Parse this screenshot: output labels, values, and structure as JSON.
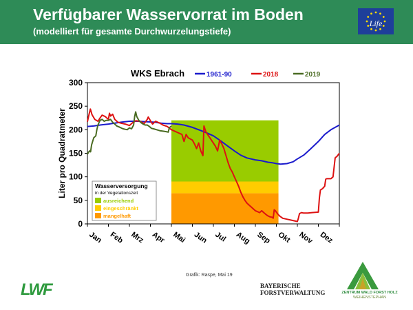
{
  "header": {
    "title": "Verfügbarer Wasservorrat im Boden",
    "subtitle": "(modelliert für gesamte Durchwurzelungstiefe)",
    "eu_logo_text": "Life"
  },
  "chart_data": {
    "type": "line",
    "title": "WKS Ebrach",
    "ylabel": "Liter pro Quadratmeter",
    "xlabel": "",
    "ylim": [
      0,
      300
    ],
    "yticks": [
      0,
      50,
      100,
      150,
      200,
      250,
      300
    ],
    "months": [
      "Jan",
      "Feb",
      "Mrz",
      "Apr",
      "Mai",
      "Jun",
      "Jul",
      "Aug",
      "Sep",
      "Okt",
      "Nov",
      "Dez"
    ],
    "grid": false,
    "legend": "top",
    "series": [
      {
        "name": "1961-90",
        "color": "#1a1acc",
        "points": [
          [
            0,
            207
          ],
          [
            0.3,
            208
          ],
          [
            0.6,
            210
          ],
          [
            1,
            212
          ],
          [
            1.3,
            214
          ],
          [
            1.6,
            216
          ],
          [
            2,
            218
          ],
          [
            2.4,
            218
          ],
          [
            2.8,
            217
          ],
          [
            3.2,
            216
          ],
          [
            3.5,
            214
          ],
          [
            3.8,
            213
          ],
          [
            4,
            213
          ],
          [
            4.3,
            212
          ],
          [
            4.6,
            210
          ],
          [
            5,
            205
          ],
          [
            5.3,
            200
          ],
          [
            5.6,
            195
          ],
          [
            6,
            187
          ],
          [
            6.3,
            178
          ],
          [
            6.6,
            168
          ],
          [
            7,
            155
          ],
          [
            7.3,
            146
          ],
          [
            7.6,
            140
          ],
          [
            8,
            136
          ],
          [
            8.3,
            134
          ],
          [
            8.6,
            131
          ],
          [
            8.8,
            130
          ],
          [
            9,
            128
          ],
          [
            9.2,
            127
          ],
          [
            9.5,
            128
          ],
          [
            9.8,
            132
          ],
          [
            10,
            138
          ],
          [
            10.3,
            146
          ],
          [
            10.6,
            158
          ],
          [
            11,
            175
          ],
          [
            11.3,
            190
          ],
          [
            11.6,
            200
          ],
          [
            12,
            210
          ]
        ],
        "type_hint": "climate mean"
      },
      {
        "name": "2018",
        "color": "#dd1111",
        "points": [
          [
            0,
            217
          ],
          [
            0.08,
            233
          ],
          [
            0.14,
            244
          ],
          [
            0.22,
            232
          ],
          [
            0.35,
            222
          ],
          [
            0.5,
            218
          ],
          [
            0.6,
            225
          ],
          [
            0.7,
            231
          ],
          [
            0.85,
            228
          ],
          [
            1,
            222
          ],
          [
            1.05,
            235
          ],
          [
            1.1,
            229
          ],
          [
            1.2,
            233
          ],
          [
            1.3,
            222
          ],
          [
            1.45,
            216
          ],
          [
            1.6,
            214
          ],
          [
            1.8,
            212
          ],
          [
            2,
            209
          ],
          [
            2.15,
            215
          ],
          [
            2.3,
            219
          ],
          [
            2.5,
            218
          ],
          [
            2.7,
            213
          ],
          [
            2.85,
            222
          ],
          [
            2.9,
            227
          ],
          [
            3.0,
            219
          ],
          [
            3.1,
            212
          ],
          [
            3.25,
            218
          ],
          [
            3.45,
            214
          ],
          [
            3.6,
            210
          ],
          [
            3.8,
            207
          ],
          [
            4,
            200
          ],
          [
            4.3,
            194
          ],
          [
            4.5,
            190
          ],
          [
            4.6,
            175
          ],
          [
            4.7,
            190
          ],
          [
            4.8,
            183
          ],
          [
            5.0,
            178
          ],
          [
            5.1,
            170
          ],
          [
            5.2,
            160
          ],
          [
            5.3,
            172
          ],
          [
            5.4,
            155
          ],
          [
            5.5,
            145
          ],
          [
            5.55,
            208
          ],
          [
            5.65,
            195
          ],
          [
            5.8,
            185
          ],
          [
            5.95,
            175
          ],
          [
            6.1,
            165
          ],
          [
            6.2,
            155
          ],
          [
            6.3,
            178
          ],
          [
            6.4,
            170
          ],
          [
            6.5,
            160
          ],
          [
            6.6,
            145
          ],
          [
            6.7,
            130
          ],
          [
            6.8,
            118
          ],
          [
            6.9,
            110
          ],
          [
            7,
            100
          ],
          [
            7.1,
            90
          ],
          [
            7.2,
            80
          ],
          [
            7.3,
            68
          ],
          [
            7.4,
            58
          ],
          [
            7.5,
            50
          ],
          [
            7.6,
            44
          ],
          [
            7.7,
            40
          ],
          [
            7.8,
            36
          ],
          [
            7.9,
            32
          ],
          [
            8,
            28
          ],
          [
            8.1,
            26
          ],
          [
            8.2,
            24
          ],
          [
            8.3,
            28
          ],
          [
            8.4,
            24
          ],
          [
            8.5,
            20
          ],
          [
            8.6,
            17
          ],
          [
            8.7,
            15
          ],
          [
            8.8,
            14
          ],
          [
            8.85,
            12
          ],
          [
            8.9,
            30
          ],
          [
            8.95,
            28
          ],
          [
            9.05,
            22
          ],
          [
            9.15,
            17
          ],
          [
            9.3,
            12
          ],
          [
            9.5,
            10
          ],
          [
            9.7,
            8
          ],
          [
            9.9,
            6
          ],
          [
            10,
            5
          ],
          [
            10.05,
            12
          ],
          [
            10.1,
            22
          ],
          [
            10.2,
            24
          ],
          [
            10.3,
            23
          ],
          [
            10.5,
            23
          ],
          [
            10.7,
            24
          ],
          [
            11,
            25
          ],
          [
            11.05,
            55
          ],
          [
            11.1,
            72
          ],
          [
            11.2,
            75
          ],
          [
            11.3,
            80
          ],
          [
            11.35,
            95
          ],
          [
            11.4,
            96
          ],
          [
            11.6,
            96
          ],
          [
            11.7,
            100
          ],
          [
            11.8,
            140
          ],
          [
            11.9,
            144
          ],
          [
            12,
            150
          ]
        ],
        "type_hint": "year"
      },
      {
        "name": "2019",
        "color": "#4a6b22",
        "points": [
          [
            0,
            148
          ],
          [
            0.05,
            152
          ],
          [
            0.1,
            155
          ],
          [
            0.15,
            153
          ],
          [
            0.2,
            168
          ],
          [
            0.3,
            183
          ],
          [
            0.4,
            187
          ],
          [
            0.45,
            200
          ],
          [
            0.5,
            210
          ],
          [
            0.6,
            220
          ],
          [
            0.7,
            222
          ],
          [
            0.8,
            218
          ],
          [
            0.9,
            220
          ],
          [
            1,
            220
          ],
          [
            1.1,
            222
          ],
          [
            1.2,
            216
          ],
          [
            1.3,
            212
          ],
          [
            1.4,
            208
          ],
          [
            1.5,
            206
          ],
          [
            1.6,
            204
          ],
          [
            1.7,
            202
          ],
          [
            1.8,
            201
          ],
          [
            1.9,
            200
          ],
          [
            2,
            204
          ],
          [
            2.1,
            202
          ],
          [
            2.2,
            210
          ],
          [
            2.25,
            228
          ],
          [
            2.3,
            238
          ],
          [
            2.35,
            228
          ],
          [
            2.45,
            220
          ],
          [
            2.55,
            215
          ],
          [
            2.65,
            212
          ],
          [
            2.75,
            210
          ],
          [
            2.85,
            210
          ],
          [
            2.95,
            207
          ],
          [
            3.05,
            203
          ],
          [
            3.15,
            202
          ],
          [
            3.3,
            200
          ],
          [
            3.45,
            198
          ],
          [
            3.6,
            197
          ],
          [
            3.75,
            196
          ],
          [
            3.85,
            195
          ],
          [
            3.9,
            204
          ],
          [
            4,
            208
          ]
        ],
        "type_hint": "year"
      }
    ],
    "zones": {
      "x_start": 4.0,
      "x_end": 9.1,
      "bands": [
        {
          "from": 90,
          "to": 220,
          "label": "ausreichend",
          "color": "#99cc00"
        },
        {
          "from": 65,
          "to": 90,
          "label": "eingeschränkt",
          "color": "#ffcc00"
        },
        {
          "from": 0,
          "to": 65,
          "label": "mangelhaft",
          "color": "#ff9900"
        }
      ]
    },
    "zone_legend": {
      "heading": "Wasserversorgung",
      "subheading": "in der Vegetationszeit"
    }
  },
  "footer": {
    "credit": "Grafik: Raspe, Mai 19",
    "lwf_logo": "LWF",
    "bfv_line1": "BAYERISCHE",
    "bfv_line2": "FORSTVERWALTUNG",
    "zwfh_line1": "ZENTRUM WALD FORST HOLZ",
    "zwfh_line2": "WEIHENSTEPHAN"
  }
}
